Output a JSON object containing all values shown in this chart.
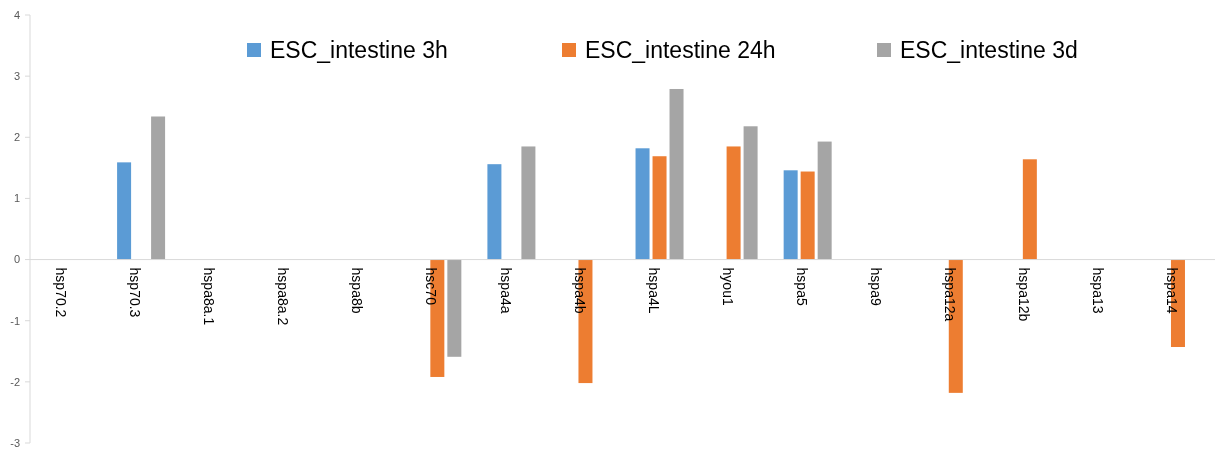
{
  "chart_data": {
    "type": "bar",
    "categories": [
      "hsp70.2",
      "hsp70.3",
      "hspa8a.1",
      "hspa8a.2",
      "hspa8b",
      "hsc70",
      "hspa4a",
      "hspa4b",
      "hspa4L",
      "hyou1",
      "hspa5",
      "hspa9",
      "hspa12a",
      "hspa12b",
      "hspa13",
      "hspa14"
    ],
    "series": [
      {
        "name": "ESC_intestine 3h",
        "color": "#5b9bd5",
        "values": [
          null,
          1.59,
          null,
          null,
          null,
          null,
          1.56,
          null,
          1.82,
          null,
          1.46,
          null,
          null,
          null,
          null,
          null
        ]
      },
      {
        "name": "ESC_intestine 24h",
        "color": "#ed7d31",
        "values": [
          null,
          null,
          null,
          null,
          null,
          -1.92,
          null,
          -2.02,
          1.69,
          1.85,
          1.44,
          null,
          -2.18,
          1.64,
          null,
          -1.43
        ]
      },
      {
        "name": "ESC_intestine 3d",
        "color": "#a5a5a5",
        "values": [
          null,
          2.34,
          null,
          null,
          null,
          -1.59,
          1.85,
          null,
          2.79,
          2.18,
          1.93,
          null,
          null,
          null,
          null,
          null
        ]
      }
    ],
    "ylim": [
      -3,
      4
    ],
    "yticks": [
      -3,
      -2,
      -1,
      0,
      1,
      2,
      3,
      4
    ],
    "grid": false,
    "legend": "top"
  }
}
